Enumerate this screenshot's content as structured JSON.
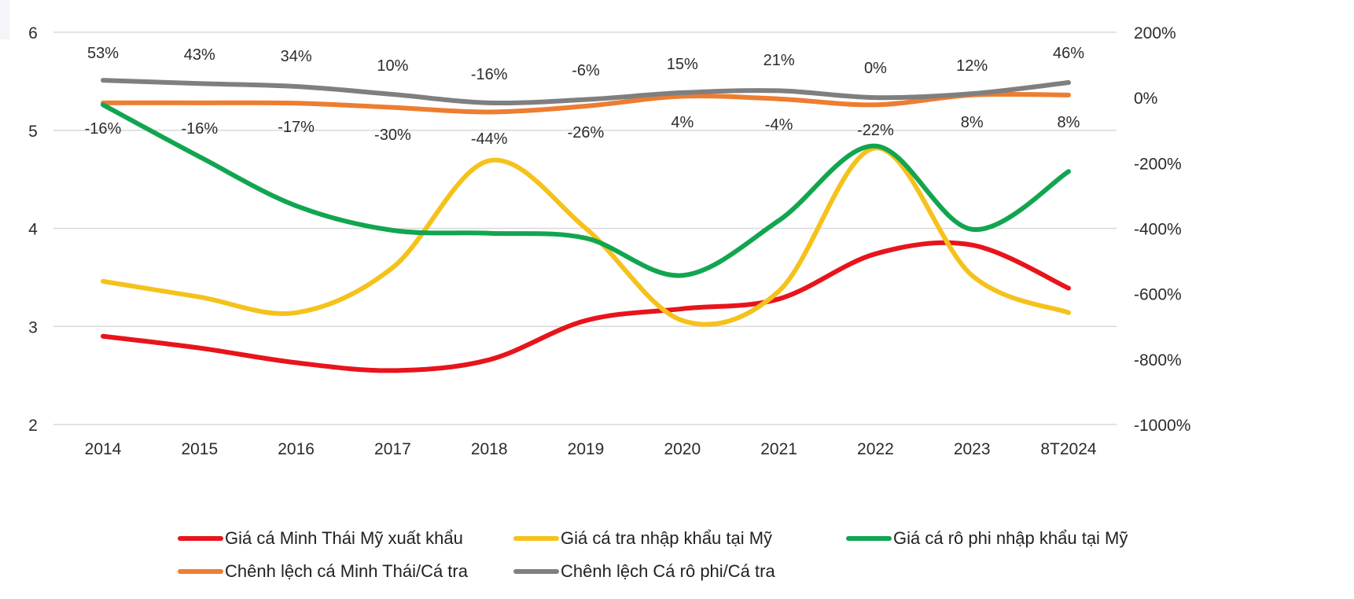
{
  "chart_data": {
    "type": "line",
    "title": "",
    "xlabel": "",
    "ylabel": "",
    "categories": [
      "2014",
      "2015",
      "2016",
      "2017",
      "2018",
      "2019",
      "2020",
      "2021",
      "2022",
      "2023",
      "8T2024"
    ],
    "y_left": {
      "ylim": [
        2,
        6
      ],
      "ticks": [
        2,
        3,
        4,
        5,
        6
      ],
      "tick_labels": [
        "2",
        "3",
        "4",
        "5",
        "6"
      ]
    },
    "y_right": {
      "ylim": [
        -1000,
        200
      ],
      "ticks": [
        200,
        0,
        -200,
        -400,
        -600,
        -800,
        -1000
      ],
      "tick_labels": [
        "200%",
        "0%",
        "-200%",
        "-400%",
        "-600%",
        "-800%",
        "-1000%"
      ]
    },
    "grid": true,
    "legend_position": "bottom",
    "series": [
      {
        "name": "Giá cá Minh Thái Mỹ xuất khẩu",
        "axis": "left",
        "color": "#e8141b",
        "values": [
          2.9,
          2.78,
          2.63,
          2.55,
          2.66,
          3.06,
          3.18,
          3.28,
          3.74,
          3.83,
          3.39
        ]
      },
      {
        "name": "Giá cá tra nhập khẩu tại Mỹ",
        "axis": "left",
        "color": "#f5c21b",
        "values": [
          3.46,
          3.3,
          3.14,
          3.6,
          4.69,
          4.0,
          3.06,
          3.36,
          4.82,
          3.52,
          3.14
        ]
      },
      {
        "name": "Giá cá rô phi nhập khẩu tại Mỹ",
        "axis": "left",
        "color": "#12a550",
        "values": [
          5.26,
          4.73,
          4.23,
          3.98,
          3.95,
          3.9,
          3.52,
          4.08,
          4.84,
          3.99,
          4.58
        ]
      },
      {
        "name": "Chênh lệch cá Minh Thái/Cá tra",
        "axis": "right",
        "color": "#ed7d31",
        "values": [
          -16,
          -16,
          -17,
          -30,
          -44,
          -26,
          4,
          -4,
          -22,
          8,
          8
        ],
        "data_labels": [
          "-16%",
          "-16%",
          "-17%",
          "-30%",
          "-44%",
          "-26%",
          "4%",
          "-4%",
          "-22%",
          "8%",
          "8%"
        ]
      },
      {
        "name": "Chênh lệch Cá rô phi/Cá tra",
        "axis": "right",
        "color": "#7f7f7f",
        "values": [
          53,
          43,
          34,
          10,
          -16,
          -6,
          15,
          21,
          0,
          12,
          46
        ],
        "data_labels": [
          "53%",
          "43%",
          "34%",
          "10%",
          "-16%",
          "-6%",
          "15%",
          "21%",
          "0%",
          "12%",
          "46%"
        ]
      }
    ]
  },
  "legend": {
    "items": [
      {
        "label": "Giá cá Minh Thái Mỹ xuất khẩu",
        "color": "#e8141b"
      },
      {
        "label": "Giá cá tra nhập khẩu tại Mỹ",
        "color": "#f5c21b"
      },
      {
        "label": "Giá cá rô phi nhập khẩu tại Mỹ",
        "color": "#12a550"
      },
      {
        "label": "Chênh lệch cá Minh Thái/Cá tra",
        "color": "#ed7d31"
      },
      {
        "label": "Chênh lệch Cá rô phi/Cá tra",
        "color": "#7f7f7f"
      }
    ]
  }
}
